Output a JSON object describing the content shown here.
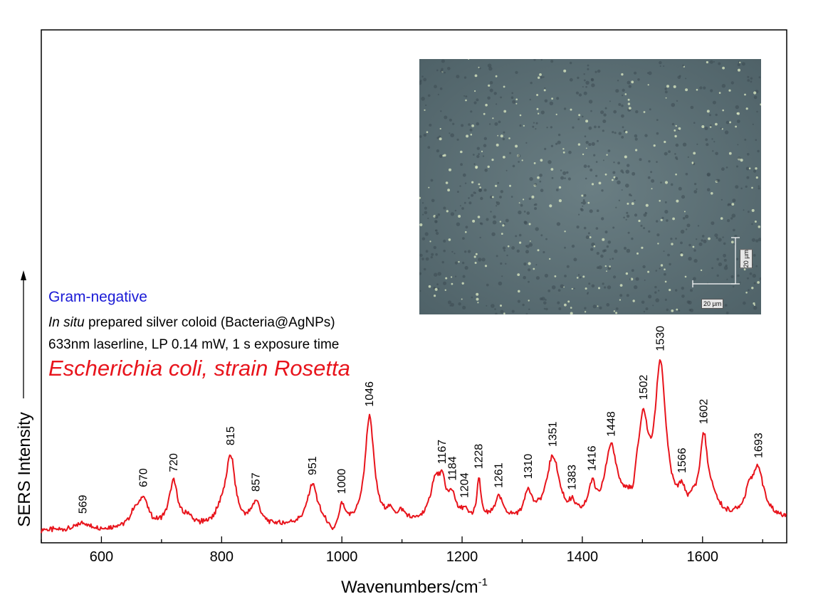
{
  "chart_data": {
    "type": "line",
    "xlabel": "Wavenumbers/cm",
    "xlabel_superscript": "-1",
    "ylabel": "SERS Intensity",
    "xlim": [
      500,
      1740
    ],
    "ylim": [
      0,
      100
    ],
    "xticks": [
      600,
      800,
      1000,
      1200,
      1400,
      1600
    ],
    "x_minor_step": 100,
    "y_tick_labels": false,
    "grid": false,
    "series": [
      {
        "color": "#e8141c",
        "peaks": [
          {
            "x": 569,
            "label": "569",
            "height": 1.5,
            "width": 10
          },
          {
            "x": 670,
            "label": "670",
            "height": 6,
            "width": 9
          },
          {
            "x": 720,
            "label": "720",
            "height": 10,
            "width": 9
          },
          {
            "x": 815,
            "label": "815",
            "height": 15,
            "width": 9
          },
          {
            "x": 857,
            "label": "857",
            "height": 5,
            "width": 9
          },
          {
            "x": 951,
            "label": "951",
            "height": 9,
            "width": 10
          },
          {
            "x": 1000,
            "label": "1000",
            "height": 4,
            "width": 5
          },
          {
            "x": 1046,
            "label": "1046",
            "height": 24,
            "width": 9
          },
          {
            "x": 1167,
            "label": "1167",
            "height": 7,
            "width": 8
          },
          {
            "x": 1184,
            "label": "1184",
            "height": 5,
            "width": 7
          },
          {
            "x": 1204,
            "label": "1204",
            "height": 2,
            "width": 6
          },
          {
            "x": 1228,
            "label": "1228",
            "height": 9,
            "width": 4
          },
          {
            "x": 1261,
            "label": "1261",
            "height": 5,
            "width": 9
          },
          {
            "x": 1310,
            "label": "1310",
            "height": 6,
            "width": 8
          },
          {
            "x": 1351,
            "label": "1351",
            "height": 14,
            "width": 13
          },
          {
            "x": 1383,
            "label": "1383",
            "height": 2,
            "width": 6
          },
          {
            "x": 1416,
            "label": "1416",
            "height": 6,
            "width": 7
          },
          {
            "x": 1448,
            "label": "1448",
            "height": 15,
            "width": 13
          },
          {
            "x": 1502,
            "label": "1502",
            "height": 17,
            "width": 9
          },
          {
            "x": 1530,
            "label": "1530",
            "height": 33,
            "width": 11
          },
          {
            "x": 1566,
            "label": "1566",
            "height": 4,
            "width": 7
          },
          {
            "x": 1602,
            "label": "1602",
            "height": 17,
            "width": 8
          },
          {
            "x": 1693,
            "label": "1693",
            "height": 10,
            "width": 11
          }
        ],
        "extra_bands": [
          {
            "x": 655,
            "height": 3,
            "width": 10
          },
          {
            "x": 745,
            "height": 2,
            "width": 6
          },
          {
            "x": 800,
            "height": 3,
            "width": 10
          },
          {
            "x": 1080,
            "height": 2,
            "width": 8
          },
          {
            "x": 1100,
            "height": 2,
            "width": 8
          },
          {
            "x": 1155,
            "height": 8,
            "width": 10
          },
          {
            "x": 1490,
            "height": 6,
            "width": 10
          },
          {
            "x": 1585,
            "height": 2,
            "width": 6
          },
          {
            "x": 1618,
            "height": 3,
            "width": 10
          },
          {
            "x": 1678,
            "height": 5,
            "width": 9
          }
        ],
        "baseline_start": 1.0,
        "baseline_end": 3.5,
        "dips": [
          {
            "x": 985,
            "depth": 2.5,
            "width": 10
          },
          {
            "x": 1485,
            "depth": 4,
            "width": 6
          }
        ]
      }
    ]
  },
  "annotations": {
    "gram": "Gram-negative",
    "gram_color": "#1a1ad6",
    "prep_italic": "In situ",
    "prep_rest": " prepared silver coloid (Bacteria@AgNPs)",
    "laser": "633nm laserline, LP 0.14 mW, 1 s exposure time",
    "species": "Escherichia coli, strain Rosetta",
    "species_color": "#e8141c"
  },
  "micrograph": {
    "scale_vertical": "20 µm",
    "scale_horizontal": "20 µm"
  }
}
